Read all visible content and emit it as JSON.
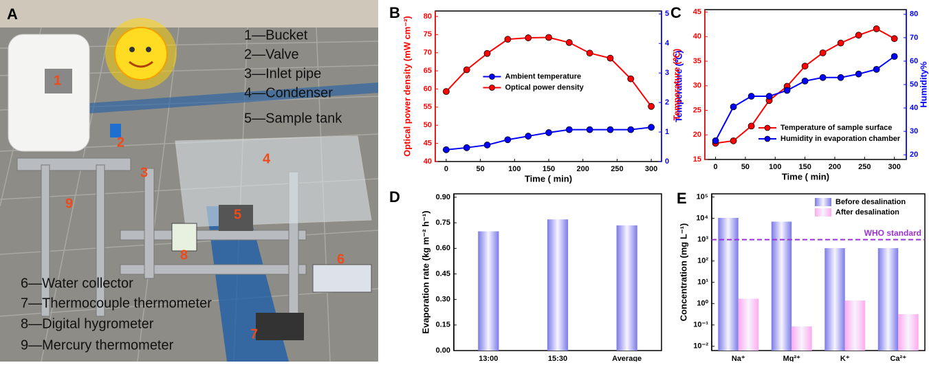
{
  "photo_panel": {
    "label": "A",
    "legend": [
      "1—Bucket",
      "2—Valve",
      "3—Inlet pipe",
      "4—Condenser",
      "5—Sample tank",
      "6—Water collector",
      "7—Thermocouple thermometer",
      "8—Digital hygrometer",
      "9—Mercury thermometer"
    ],
    "markers": [
      "1",
      "2",
      "3",
      "4",
      "5",
      "6",
      "7",
      "8",
      "9"
    ]
  },
  "chart_data": [
    {
      "type": "line",
      "label": "B",
      "x_label": "Time ( min)",
      "y_label": "Optical power density (mW cm⁻²)",
      "y2_label": "Temperature (℃)",
      "x": [
        0,
        30,
        60,
        90,
        120,
        150,
        180,
        210,
        240,
        270,
        300
      ],
      "xlim": [
        -16,
        315
      ],
      "xticks": [
        0,
        50,
        100,
        150,
        200,
        250,
        300
      ],
      "ylim": [
        40,
        81.5
      ],
      "yticks": [
        40,
        45,
        50,
        55,
        60,
        65,
        70,
        75,
        80
      ],
      "y2lim": [
        0,
        5.1
      ],
      "y2ticks": [
        0,
        1,
        2,
        3,
        4,
        5
      ],
      "legend": "center",
      "series": [
        {
          "name": "Ambient temperature",
          "color": "#0000ff",
          "axis": "y2",
          "values": [
            0.4,
            0.47,
            0.56,
            0.74,
            0.86,
            0.98,
            1.08,
            1.08,
            1.08,
            1.08,
            1.16
          ]
        },
        {
          "name": "Optical power density",
          "color": "#ff0000",
          "values": [
            59.3,
            65.3,
            69.8,
            73.7,
            74.1,
            74.2,
            72.8,
            69.9,
            68.5,
            62.8,
            55.2
          ]
        }
      ]
    },
    {
      "type": "line",
      "label": "C",
      "x_label": "Time ( min)",
      "y_label": "Temperature (℃)",
      "y2_label": "Humidity%",
      "x": [
        0,
        30,
        60,
        90,
        120,
        150,
        180,
        210,
        240,
        270,
        300
      ],
      "xlim": [
        -18,
        320
      ],
      "xticks": [
        0,
        50,
        100,
        150,
        200,
        250,
        300
      ],
      "ylim": [
        15,
        45.5
      ],
      "yticks": [
        15,
        20,
        25,
        30,
        35,
        40,
        45
      ],
      "y2lim": [
        18,
        82
      ],
      "y2ticks": [
        20,
        30,
        40,
        50,
        60,
        70,
        80
      ],
      "legend": "lower right",
      "series": [
        {
          "name": "Temperature of sample surface",
          "color": "#ff0000",
          "values": [
            18.3,
            18.8,
            21.8,
            27,
            29.9,
            34,
            36.7,
            38.7,
            40.3,
            41.6,
            39.6
          ]
        },
        {
          "name": "Humidity in evaporation chamber",
          "color": "#0000ff",
          "axis": "y2",
          "values": [
            26,
            40.5,
            45,
            45,
            47.5,
            51.5,
            53,
            53,
            54.5,
            56.5,
            62
          ]
        }
      ]
    },
    {
      "type": "bar",
      "label": "D",
      "y_label": "Evaporation rate (kg m⁻² h⁻¹)",
      "categories": [
        "13:00",
        "15:30",
        "Average"
      ],
      "values": [
        0.7,
        0.77,
        0.735
      ],
      "color": "#7b7be8",
      "ylim": [
        0,
        0.92
      ],
      "yticks": [
        {
          "value": 0,
          "label": "0.00"
        },
        0.15,
        {
          "value": 0.3,
          "label": "0.30"
        },
        0.45,
        {
          "value": 0.6,
          "label": "0.60"
        },
        0.75,
        {
          "value": 0.9,
          "label": "0.90"
        }
      ]
    },
    {
      "type": "grouped_bar",
      "label": "E",
      "y_label": "Concentration (mg L⁻¹)",
      "y_scale": "log",
      "categories": [
        "Na⁺",
        "Mg²⁺",
        "K⁺",
        "Ca²⁺"
      ],
      "ylim": [
        0.0063,
        141000
      ],
      "yticks": [
        {
          "value": 0.01,
          "label": "10⁻²"
        },
        {
          "value": 0.1,
          "label": "10⁻¹"
        },
        {
          "value": 1,
          "label": "10⁰"
        },
        {
          "value": 10,
          "label": "10¹"
        },
        {
          "value": 100,
          "label": "10²"
        },
        {
          "value": 1000,
          "label": "10³"
        },
        {
          "value": 10000,
          "label": "10⁴"
        },
        {
          "value": 100000,
          "label": "10⁵"
        }
      ],
      "legend": "upper right",
      "reference_line": {
        "value": 1000,
        "label": "WHO standard",
        "color": "#9b30d9"
      },
      "series": [
        {
          "name": "Before desalination",
          "color": "#7b7be8",
          "values": [
            10500,
            7000,
            400,
            400
          ]
        },
        {
          "name": "After desalination",
          "color": "#ffaaee",
          "values": [
            1.7,
            0.085,
            1.4,
            0.32
          ]
        }
      ]
    }
  ]
}
